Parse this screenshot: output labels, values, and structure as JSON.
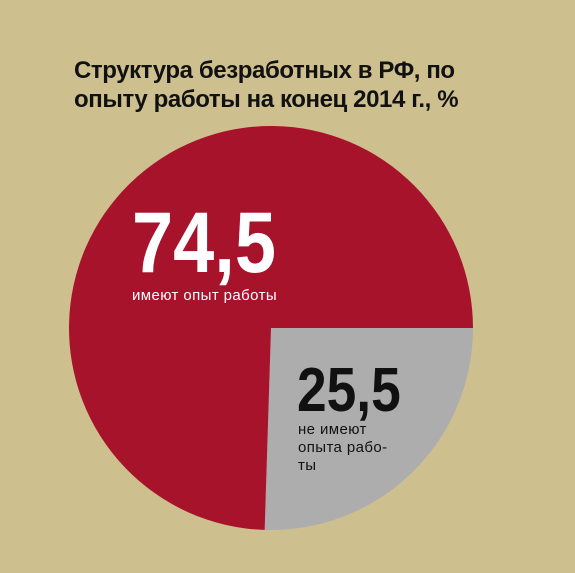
{
  "title_lines": [
    "Структура безработных в РФ, по",
    "опыту работы на конец 2014 г., %"
  ],
  "colors": {
    "background": "#cdbf8e",
    "with_experience": "#a8132c",
    "without_experience": "#adadad"
  },
  "chart_data": {
    "type": "pie",
    "title": "Структура безработных в РФ, по опыту работы на конец 2014 г., %",
    "start": "3 o'clock, clockwise",
    "slices": [
      {
        "label": "не имеют опыта работы",
        "value": 25.5,
        "value_text": "25,5",
        "label_lines": [
          "не имеют",
          "опыта рабо-",
          "ты"
        ],
        "color": "#adadad"
      },
      {
        "label": "имеют опыт работы",
        "value": 74.5,
        "value_text": "74,5",
        "label_lines": [
          "имеют опыт работы"
        ],
        "color": "#a8132c"
      }
    ]
  }
}
